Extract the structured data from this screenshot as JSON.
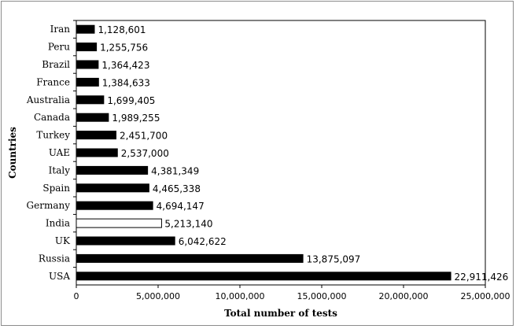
{
  "chart_data": {
    "type": "bar",
    "orientation": "horizontal",
    "categories": [
      "Iran",
      "Peru",
      "Brazil",
      "France",
      "Australia",
      "Canada",
      "Turkey",
      "UAE",
      "Italy",
      "Spain",
      "Germany",
      "India",
      "UK",
      "Russia",
      "USA"
    ],
    "values": [
      1128601,
      1255756,
      1364423,
      1384633,
      1699405,
      1989255,
      2451700,
      2537000,
      4381349,
      4465338,
      4694147,
      5213140,
      6042622,
      13875097,
      22911426
    ],
    "value_labels": [
      "1,128,601",
      "1,255,756",
      "1,364,423",
      "1,384,633",
      "1,699,405",
      "1,989,255",
      "2,451,700",
      "2,537,000",
      "4,381,349",
      "4,465,338",
      "4,694,147",
      "5,213,140",
      "6,042,622",
      "13,875,097",
      "22,911,426"
    ],
    "highlighted_category": "India",
    "colors": {
      "bar": "#000000",
      "highlight_fill": "#ffffff",
      "highlight_stroke": "#000000"
    },
    "xlabel": "Total number of tests",
    "ylabel": "Countries",
    "xlim": [
      0,
      25000000
    ],
    "xticks": [
      0,
      5000000,
      10000000,
      15000000,
      20000000,
      25000000
    ],
    "xtick_labels": [
      "0",
      "5,000,000",
      "10,000,000",
      "15,000,000",
      "20,000,000",
      "25,000,000"
    ],
    "grid": false,
    "legend": "none"
  }
}
